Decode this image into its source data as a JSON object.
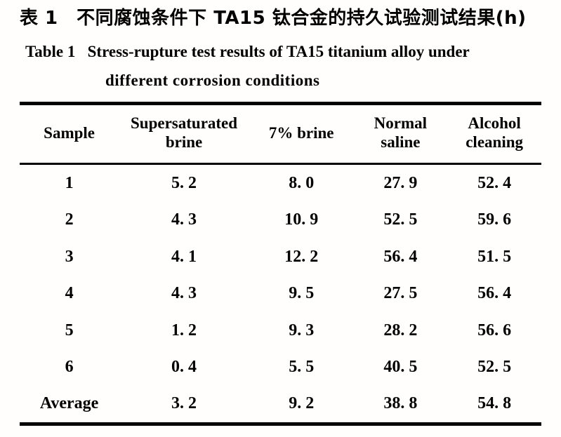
{
  "page": {
    "background_color": "#ffffff",
    "text_color": "#000000",
    "rule_color": "#000000"
  },
  "title": {
    "zh": "表 1　不同腐蚀条件下 TA15 钛合金的持久试验测试结果(h)",
    "en_line1": "Table 1   Stress-rupture test results of TA15 titanium alloy under",
    "en_line2": "different corrosion conditions"
  },
  "table": {
    "unit": "h",
    "headers": [
      "Sample",
      "Supersaturated brine",
      "7% brine",
      "Normal saline",
      "Alcohol cleaning"
    ],
    "rows": [
      {
        "sample": "1",
        "values": [
          "5. 2",
          "8. 0",
          "27. 9",
          "52. 4"
        ]
      },
      {
        "sample": "2",
        "values": [
          "4. 3",
          "10. 9",
          "52. 5",
          "59. 6"
        ]
      },
      {
        "sample": "3",
        "values": [
          "4. 1",
          "12. 2",
          "56. 4",
          "51. 5"
        ]
      },
      {
        "sample": "4",
        "values": [
          "4. 3",
          "9. 5",
          "27. 5",
          "56. 4"
        ]
      },
      {
        "sample": "5",
        "values": [
          "1. 2",
          "9. 3",
          "28. 2",
          "56. 6"
        ]
      },
      {
        "sample": "6",
        "values": [
          "0. 4",
          "5. 5",
          "40. 5",
          "52. 5"
        ]
      },
      {
        "sample": "Average",
        "values": [
          "3. 2",
          "9. 2",
          "38. 8",
          "54. 8"
        ]
      }
    ]
  }
}
